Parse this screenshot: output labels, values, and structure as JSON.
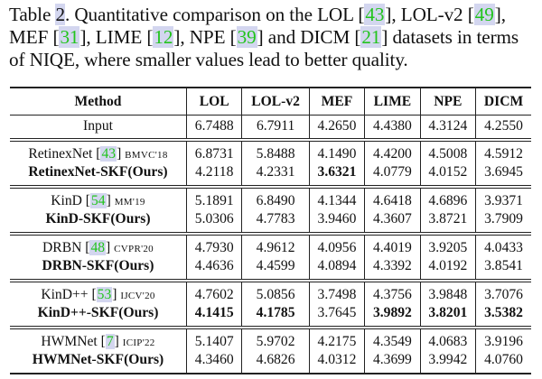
{
  "caption": {
    "prefix": "Table ",
    "number": "2",
    "text1": ". Quantitative comparison on the LOL ",
    "c1": "43",
    "text2": ", LOL-v2 ",
    "c2": "49",
    "text3": ", MEF ",
    "c3": "31",
    "text4": ", LIME ",
    "c4": "12",
    "text5": ", NPE ",
    "c5": "39",
    "text6": " and DICM ",
    "c6": "21",
    "text7": " datasets in terms of NIQE, where smaller values lead to better quality."
  },
  "table": {
    "headers": [
      "Method",
      "LOL",
      "LOL-v2",
      "MEF",
      "LIME",
      "NPE",
      "DICM"
    ],
    "input_row": {
      "method": "Input",
      "values": [
        "6.7488",
        "6.7911",
        "4.2650",
        "4.4380",
        "4.3124",
        "4.2550"
      ]
    },
    "groups": [
      {
        "baseline": {
          "name": "RetinexNet",
          "cite": "43",
          "venue": "BMVC'18",
          "values": [
            "6.8731",
            "5.8488",
            "4.1490",
            "4.4200",
            "4.5008",
            "4.5912"
          ]
        },
        "ours": {
          "name": "RetinexNet-SKF(Ours)",
          "values": [
            "4.2118",
            "4.2331",
            "3.6321",
            "4.0779",
            "4.0152",
            "3.6945"
          ],
          "bold": [
            false,
            false,
            true,
            false,
            false,
            false
          ]
        }
      },
      {
        "baseline": {
          "name": "KinD",
          "cite": "54",
          "venue": "MM'19",
          "values": [
            "5.1891",
            "6.8490",
            "4.1344",
            "4.6418",
            "4.6896",
            "3.9371"
          ]
        },
        "ours": {
          "name": "KinD-SKF(Ours)",
          "values": [
            "5.0306",
            "4.7783",
            "3.9460",
            "4.3607",
            "3.8721",
            "3.7909"
          ],
          "bold": [
            false,
            false,
            false,
            false,
            false,
            false
          ]
        }
      },
      {
        "baseline": {
          "name": "DRBN",
          "cite": "48",
          "venue": "CVPR'20",
          "values": [
            "4.7930",
            "4.9612",
            "4.0956",
            "4.4019",
            "3.9205",
            "4.0433"
          ]
        },
        "ours": {
          "name": "DRBN-SKF(Ours)",
          "values": [
            "4.4636",
            "4.4599",
            "4.0894",
            "4.3392",
            "4.0192",
            "3.8541"
          ],
          "bold": [
            false,
            false,
            false,
            false,
            false,
            false
          ]
        }
      },
      {
        "baseline": {
          "name": "KinD++",
          "cite": "53",
          "venue": "IJCV'20",
          "values": [
            "4.7602",
            "5.0856",
            "3.7498",
            "4.3756",
            "3.9848",
            "3.7076"
          ]
        },
        "ours": {
          "name": "KinD++-SKF(Ours)",
          "values": [
            "4.1415",
            "4.1785",
            "3.7645",
            "3.9892",
            "3.8201",
            "3.5382"
          ],
          "bold": [
            true,
            true,
            false,
            true,
            true,
            true
          ]
        }
      },
      {
        "baseline": {
          "name": "HWMNet",
          "cite": "7",
          "venue": "ICIP'22",
          "values": [
            "5.1407",
            "5.9702",
            "4.2175",
            "4.3549",
            "4.0683",
            "3.9196"
          ]
        },
        "ours": {
          "name": "HWMNet-SKF(Ours)",
          "values": [
            "4.3460",
            "4.6826",
            "4.0312",
            "4.3699",
            "3.9942",
            "4.0760"
          ],
          "bold": [
            false,
            false,
            false,
            false,
            false,
            false
          ]
        }
      }
    ]
  },
  "colors": {
    "citation": "#22c41d",
    "citation_highlight": "#d3d6ef",
    "rule": "#222222"
  }
}
